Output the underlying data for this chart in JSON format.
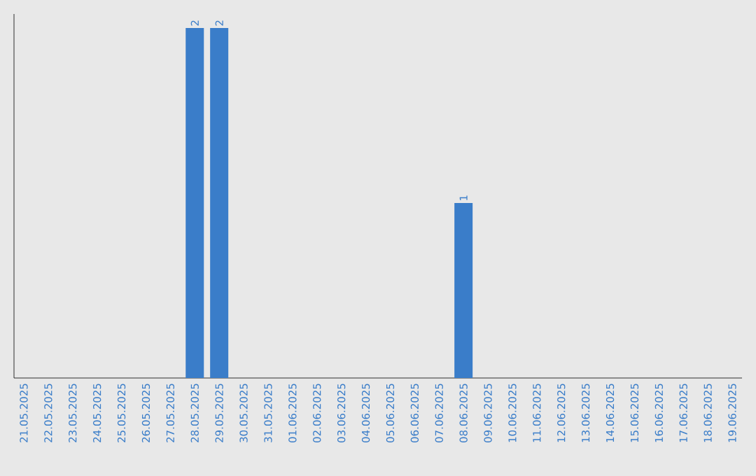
{
  "chart_data": {
    "type": "bar",
    "tick_labels": "x",
    "color": "#3a7dc9",
    "categories": [
      "21.05.2025",
      "22.05.2025",
      "23.05.2025",
      "24.05.2025",
      "25.05.2025",
      "26.05.2025",
      "27.05.2025",
      "28.05.2025",
      "29.05.2025",
      "30.05.2025",
      "31.05.2025",
      "01.06.2025",
      "02.06.2025",
      "03.06.2025",
      "04.06.2025",
      "05.06.2025",
      "06.06.2025",
      "07.06.2025",
      "08.06.2025",
      "09.06.2025",
      "10.06.2025",
      "11.06.2025",
      "12.06.2025",
      "13.06.2025",
      "14.06.2025",
      "15.06.2025",
      "16.06.2025",
      "17.06.2025",
      "18.06.2025",
      "19.06.2025"
    ],
    "values": [
      0,
      0,
      0,
      0,
      0,
      0,
      0,
      2,
      2,
      0,
      0,
      0,
      0,
      0,
      0,
      0,
      0,
      0,
      1,
      0,
      0,
      0,
      0,
      0,
      0,
      0,
      0,
      0,
      0,
      0
    ],
    "value_labels": [
      null,
      null,
      null,
      null,
      null,
      null,
      null,
      "2",
      "2",
      null,
      null,
      null,
      null,
      null,
      null,
      null,
      null,
      null,
      "1",
      null,
      null,
      null,
      null,
      null,
      null,
      null,
      null,
      null,
      null,
      null
    ]
  }
}
